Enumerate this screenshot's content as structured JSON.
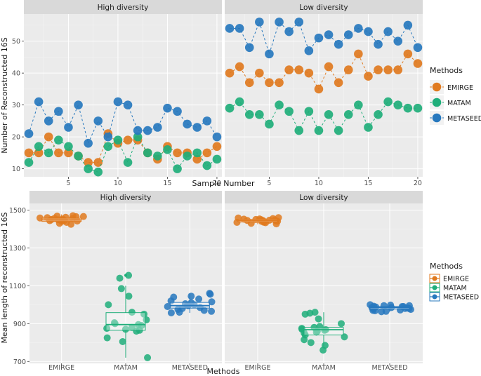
{
  "colors": {
    "EMIRGE": "#E07A1F",
    "MATAM": "#1FAE7A",
    "METASEED": "#2778BE",
    "panel_bg": "#EBEBEB",
    "strip_bg": "#D9D9D9",
    "grid_major": "#FFFFFF"
  },
  "chart_data": [
    {
      "type": "scatter",
      "title": "",
      "xlabel": "Sample Number",
      "ylabel": "Number of Reconstructed 16S",
      "xlim": [
        0.5,
        20.5
      ],
      "ylim": [
        7.5,
        58.5
      ],
      "x_ticks": [
        5,
        10,
        15,
        20
      ],
      "y_ticks": [
        10,
        20,
        30,
        40,
        50
      ],
      "legend_title": "Methods",
      "legend": [
        "EMIRGE",
        "MATAM",
        "METASEED"
      ],
      "facets": [
        {
          "label": "High diversity",
          "series": [
            {
              "name": "EMIRGE",
              "x": [
                1,
                2,
                3,
                4,
                5,
                6,
                7,
                8,
                9,
                10,
                11,
                12,
                13,
                14,
                15,
                16,
                17,
                18,
                19,
                20
              ],
              "values": [
                15,
                15,
                20,
                15,
                15,
                14,
                12,
                12,
                21,
                18,
                19,
                19,
                15,
                13,
                17,
                15,
                15,
                13,
                15,
                17
              ]
            },
            {
              "name": "MATAM",
              "x": [
                1,
                2,
                3,
                4,
                5,
                6,
                7,
                8,
                9,
                10,
                11,
                12,
                13,
                14,
                15,
                16,
                17,
                18,
                19,
                20
              ],
              "values": [
                12,
                17,
                15,
                19,
                17,
                14,
                10,
                9,
                17,
                19,
                12,
                20,
                15,
                14,
                16,
                10,
                14,
                15,
                11,
                13
              ]
            },
            {
              "name": "METASEED",
              "x": [
                1,
                2,
                3,
                4,
                5,
                6,
                7,
                8,
                9,
                10,
                11,
                12,
                13,
                14,
                15,
                16,
                17,
                18,
                19,
                20
              ],
              "values": [
                21,
                31,
                25,
                28,
                23,
                30,
                18,
                25,
                20,
                31,
                30,
                22,
                22,
                23,
                29,
                28,
                24,
                23,
                25,
                20
              ]
            }
          ]
        },
        {
          "label": "Low diversity",
          "series": [
            {
              "name": "EMIRGE",
              "x": [
                1,
                2,
                3,
                4,
                5,
                6,
                7,
                8,
                9,
                10,
                11,
                12,
                13,
                14,
                15,
                16,
                17,
                18,
                19,
                20
              ],
              "values": [
                40,
                42,
                37,
                40,
                37,
                37,
                41,
                41,
                40,
                35,
                42,
                37,
                41,
                46,
                39,
                41,
                41,
                41,
                46,
                43
              ]
            },
            {
              "name": "MATAM",
              "x": [
                1,
                2,
                3,
                4,
                5,
                6,
                7,
                8,
                9,
                10,
                11,
                12,
                13,
                14,
                15,
                16,
                17,
                18,
                19,
                20
              ],
              "values": [
                29,
                31,
                27,
                27,
                24,
                30,
                28,
                22,
                28,
                22,
                27,
                22,
                27,
                30,
                23,
                27,
                31,
                30,
                29,
                29
              ]
            },
            {
              "name": "METASEED",
              "x": [
                1,
                2,
                3,
                4,
                5,
                6,
                7,
                8,
                9,
                10,
                11,
                12,
                13,
                14,
                15,
                16,
                17,
                18,
                19,
                20
              ],
              "values": [
                54,
                54,
                48,
                56,
                46,
                56,
                53,
                56,
                47,
                51,
                52,
                49,
                52,
                54,
                53,
                49,
                53,
                50,
                55,
                48
              ]
            }
          ]
        }
      ]
    },
    {
      "type": "boxplot",
      "title": "",
      "xlabel": "Methods",
      "ylabel": "Mean length of reconstructed 16S",
      "categories": [
        "EMIRGE",
        "MATAM",
        "METASEED"
      ],
      "ylim": [
        690,
        1535
      ],
      "y_ticks": [
        700,
        900,
        1100,
        1300,
        1500
      ],
      "legend_title": "Methods",
      "legend": [
        "EMIRGE",
        "MATAM",
        "METASEED"
      ],
      "facets": [
        {
          "label": "High diversity",
          "boxes": [
            {
              "name": "EMIRGE",
              "q1": 1440,
              "median": 1448,
              "q3": 1457,
              "whisker_low": 1425,
              "whisker_high": 1477,
              "outliers": [],
              "points": [
                1460,
                1455,
                1445,
                1430,
                1450,
                1465,
                1470,
                1440,
                1452,
                1447,
                1458,
                1462,
                1435,
                1468,
                1442,
                1456,
                1449,
                1444,
                1466,
                1425
              ]
            },
            {
              "name": "MATAM",
              "q1": 865,
              "median": 895,
              "q3": 958,
              "whisker_low": 720,
              "whisker_high": 1100,
              "outliers": [
                1155
              ],
              "points": [
                1155,
                1140,
                1085,
                1045,
                1000,
                960,
                920,
                905,
                900,
                895,
                890,
                880,
                875,
                870,
                865,
                860,
                825,
                805,
                720,
                950
              ]
            },
            {
              "name": "METASEED",
              "q1": 982,
              "median": 995,
              "q3": 1012,
              "whisker_low": 957,
              "whisker_high": 1060,
              "outliers": [],
              "points": [
                1060,
                1055,
                1040,
                1030,
                1020,
                1015,
                1010,
                1005,
                1000,
                998,
                995,
                990,
                985,
                980,
                975,
                970,
                965,
                960,
                957,
                1045
              ]
            }
          ]
        },
        {
          "label": "Low diversity",
          "boxes": [
            {
              "name": "EMIRGE",
              "q1": 1437,
              "median": 1444,
              "q3": 1451,
              "whisker_low": 1425,
              "whisker_high": 1460,
              "outliers": [],
              "points": [
                1455,
                1450,
                1445,
                1440,
                1435,
                1430,
                1448,
                1452,
                1442,
                1438,
                1446,
                1458,
                1433,
                1441,
                1449,
                1453,
                1436,
                1444,
                1460,
                1427
              ]
            },
            {
              "name": "MATAM",
              "q1": 840,
              "median": 868,
              "q3": 880,
              "whisker_low": 780,
              "whisker_high": 960,
              "outliers": [],
              "points": [
                960,
                955,
                950,
                925,
                900,
                885,
                880,
                875,
                870,
                868,
                865,
                860,
                855,
                850,
                840,
                830,
                815,
                800,
                785,
                760
              ]
            },
            {
              "name": "METASEED",
              "q1": 977,
              "median": 985,
              "q3": 990,
              "whisker_low": 963,
              "whisker_high": 1000,
              "outliers": [],
              "points": [
                1000,
                998,
                995,
                992,
                990,
                988,
                985,
                983,
                980,
                978,
                975,
                972,
                970,
                968,
                965,
                990,
                985,
                980,
                995,
                963
              ]
            }
          ]
        }
      ]
    }
  ]
}
